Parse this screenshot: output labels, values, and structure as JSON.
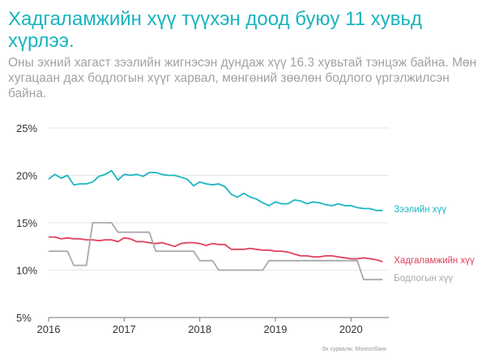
{
  "title": "Хадгаламжийн хүү түүхэн доод буюу 11 хувьд хүрлээ.",
  "subtitle": "Оны эхний хагаст зээлийн жигнэсэн дундаж хүү 16.3 хувьтай тэнцэж байна. Мөн хугацаан дах бодлогын хүүг харвал, мөнгөний зөөлөн бодлого үргэлжилсэн байна.",
  "source": "Эх сурвалж: Монголбанк",
  "colors": {
    "loan": "#1bb6c1",
    "deposit": "#e0405c",
    "policy": "#a9a9a9",
    "title": "#18b4bd",
    "subtitle": "#a2a2a2"
  },
  "chart_data": {
    "type": "line",
    "y_ticks": [
      "25%",
      "20%",
      "15%",
      "10%",
      "5%"
    ],
    "x_ticks": [
      "2016",
      "2017",
      "2018",
      "2019",
      "2020"
    ],
    "ylim": [
      5,
      25
    ],
    "xlim": [
      2016.0,
      2020.5
    ],
    "grid": true,
    "series": [
      {
        "name": "Зээлийн хүү",
        "color": "#1bb6c1",
        "x": [
          2016.0,
          2016.083,
          2016.167,
          2016.25,
          2016.333,
          2016.417,
          2016.5,
          2016.583,
          2016.667,
          2016.75,
          2016.833,
          2016.917,
          2017.0,
          2017.083,
          2017.167,
          2017.25,
          2017.333,
          2017.417,
          2017.5,
          2017.583,
          2017.667,
          2017.75,
          2017.833,
          2017.917,
          2018.0,
          2018.083,
          2018.167,
          2018.25,
          2018.333,
          2018.417,
          2018.5,
          2018.583,
          2018.667,
          2018.75,
          2018.833,
          2018.917,
          2019.0,
          2019.083,
          2019.167,
          2019.25,
          2019.333,
          2019.417,
          2019.5,
          2019.583,
          2019.667,
          2019.75,
          2019.833,
          2019.917,
          2020.0,
          2020.083,
          2020.167,
          2020.25,
          2020.333,
          2020.417
        ],
        "values": [
          19.6,
          20.1,
          19.7,
          20.0,
          19.0,
          19.1,
          19.1,
          19.3,
          19.9,
          20.1,
          20.5,
          19.5,
          20.1,
          20.0,
          20.1,
          19.9,
          20.3,
          20.3,
          20.1,
          20.0,
          20.0,
          19.8,
          19.6,
          18.9,
          19.3,
          19.1,
          19.0,
          19.1,
          18.8,
          18.0,
          17.7,
          18.1,
          17.7,
          17.5,
          17.1,
          16.8,
          17.2,
          17.0,
          17.0,
          17.4,
          17.3,
          17.0,
          17.2,
          17.1,
          16.9,
          16.8,
          17.0,
          16.8,
          16.8,
          16.6,
          16.5,
          16.5,
          16.3,
          16.3
        ]
      },
      {
        "name": "Хадгаламжийн хүү",
        "color": "#e0405c",
        "x": [
          2016.0,
          2016.083,
          2016.167,
          2016.25,
          2016.333,
          2016.417,
          2016.5,
          2016.583,
          2016.667,
          2016.75,
          2016.833,
          2016.917,
          2017.0,
          2017.083,
          2017.167,
          2017.25,
          2017.333,
          2017.417,
          2017.5,
          2017.583,
          2017.667,
          2017.75,
          2017.833,
          2017.917,
          2018.0,
          2018.083,
          2018.167,
          2018.25,
          2018.333,
          2018.417,
          2018.5,
          2018.583,
          2018.667,
          2018.75,
          2018.833,
          2018.917,
          2019.0,
          2019.083,
          2019.167,
          2019.25,
          2019.333,
          2019.417,
          2019.5,
          2019.583,
          2019.667,
          2019.75,
          2019.833,
          2019.917,
          2020.0,
          2020.083,
          2020.167,
          2020.25,
          2020.333,
          2020.417
        ],
        "values": [
          13.5,
          13.5,
          13.3,
          13.4,
          13.3,
          13.3,
          13.2,
          13.2,
          13.1,
          13.2,
          13.2,
          13.0,
          13.4,
          13.3,
          13.0,
          13.0,
          12.9,
          12.8,
          12.9,
          12.7,
          12.5,
          12.8,
          12.9,
          12.9,
          12.8,
          12.6,
          12.8,
          12.7,
          12.7,
          12.2,
          12.2,
          12.2,
          12.3,
          12.2,
          12.1,
          12.1,
          12.0,
          12.0,
          11.9,
          11.7,
          11.5,
          11.5,
          11.4,
          11.4,
          11.5,
          11.5,
          11.4,
          11.3,
          11.2,
          11.2,
          11.3,
          11.2,
          11.1,
          10.9
        ]
      },
      {
        "name": "Бодлогын хүү",
        "color": "#a9a9a9",
        "x": [
          2016.0,
          2016.25,
          2016.333,
          2016.5,
          2016.583,
          2016.833,
          2016.917,
          2017.333,
          2017.417,
          2017.917,
          2018.0,
          2018.167,
          2018.25,
          2018.833,
          2018.917,
          2020.083,
          2020.167,
          2020.417
        ],
        "values": [
          12,
          12,
          10.5,
          10.5,
          15,
          15,
          14,
          14,
          12,
          12,
          11,
          11,
          10,
          10,
          11,
          11,
          9,
          9
        ]
      }
    ]
  }
}
